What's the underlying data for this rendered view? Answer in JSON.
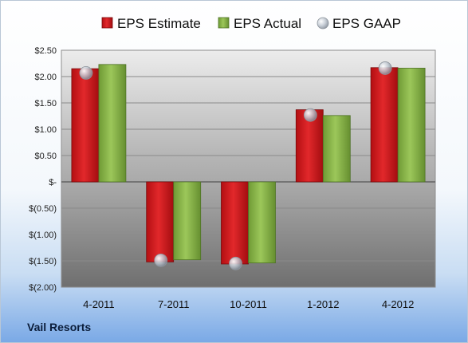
{
  "company": "Vail Resorts",
  "chart_data": {
    "type": "bar",
    "categories": [
      "4-2011",
      "7-2011",
      "10-2011",
      "1-2012",
      "4-2012"
    ],
    "series": [
      {
        "name": "EPS Estimate",
        "values": [
          2.15,
          -1.52,
          -1.56,
          1.37,
          2.17
        ],
        "color": "#d9191c",
        "kind": "bar"
      },
      {
        "name": "EPS Actual",
        "values": [
          2.23,
          -1.48,
          -1.54,
          1.26,
          2.16
        ],
        "color": "#8cb84a",
        "kind": "bar"
      },
      {
        "name": "EPS GAAP",
        "values": [
          2.07,
          -1.49,
          -1.55,
          1.27,
          2.16
        ],
        "color": "#b7bec8",
        "kind": "marker"
      }
    ],
    "yticks": [
      "$2.50",
      "$2.00",
      "$1.50",
      "$1.00",
      "$0.50",
      "$-",
      "$(0.50)",
      "$(1.00)",
      "$(1.50)",
      "$(2.00)"
    ],
    "ylim": [
      -2.0,
      2.5
    ],
    "grid": true,
    "legend": "top"
  }
}
